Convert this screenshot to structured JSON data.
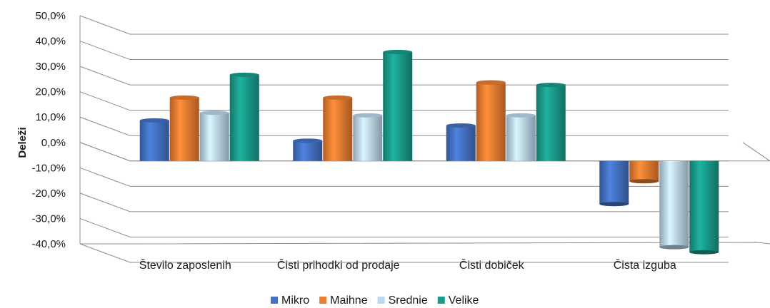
{
  "chart_data": {
    "type": "bar",
    "style": "3d-clustered-column",
    "ylabel": "Deleži",
    "xlabel": "",
    "title": "",
    "ylim": [
      -40,
      50
    ],
    "yticks": [
      "50,0%",
      "40,0%",
      "30,0%",
      "20,0%",
      "10,0%",
      "0,0%",
      "-10,0%",
      "-20,0%",
      "-30,0%",
      "-40,0%"
    ],
    "categories": [
      "Število zaposlenih",
      "Čisti prihodki od prodaje",
      "Čisti dobiček",
      "Čista izguba"
    ],
    "series": [
      {
        "name": "Mikro",
        "color": "#4472C4",
        "values": [
          16,
          8,
          14,
          -17
        ]
      },
      {
        "name": "Maihne",
        "color": "#ED7D31",
        "values": [
          25,
          25,
          31,
          -8
        ]
      },
      {
        "name": "Srednie",
        "color": "#BDD7EE",
        "values": [
          19,
          18,
          18,
          -34
        ]
      },
      {
        "name": "Velike",
        "color": "#1A9C8A",
        "values": [
          34,
          43,
          30,
          -36
        ]
      }
    ],
    "grid": true,
    "legend_position": "bottom"
  }
}
